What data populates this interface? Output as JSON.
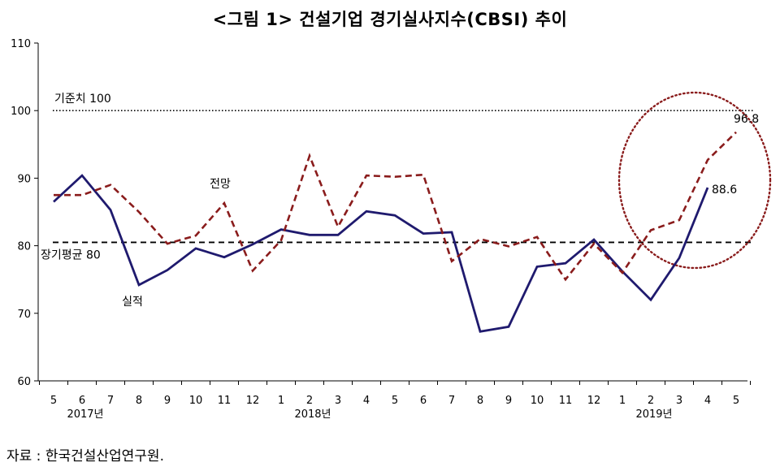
{
  "chart_data": {
    "type": "line",
    "title": "<그림 1> 건설기업 경기실사지수(CBSI) 추이",
    "x": [
      "5",
      "6",
      "7",
      "8",
      "9",
      "10",
      "11",
      "12",
      "1",
      "2",
      "3",
      "4",
      "5",
      "6",
      "7",
      "8",
      "9",
      "10",
      "11",
      "12",
      "1",
      "2",
      "3",
      "4",
      "5"
    ],
    "year_labels": [
      {
        "label": "2017년",
        "index": 1
      },
      {
        "label": "2018년",
        "index": 9
      },
      {
        "label": "2019년",
        "index": 21
      }
    ],
    "ylim": [
      60,
      110
    ],
    "yticks": [
      60,
      70,
      80,
      90,
      100,
      110
    ],
    "series": [
      {
        "name": "실적",
        "style": "solid",
        "color": "#1f1a6e",
        "values": [
          86.5,
          90.4,
          85.3,
          74.2,
          76.4,
          79.6,
          78.3,
          80.2,
          82.4,
          81.6,
          81.6,
          85.1,
          84.5,
          81.8,
          82.0,
          67.3,
          68.0,
          76.9,
          77.4,
          80.9,
          76.2,
          72.0,
          78.2,
          88.6,
          null
        ]
      },
      {
        "name": "전망",
        "style": "dashed",
        "color": "#8a1c1c",
        "values": [
          87.5,
          87.5,
          89.0,
          85.0,
          80.3,
          81.5,
          86.3,
          76.3,
          80.8,
          93.3,
          82.8,
          90.4,
          90.2,
          90.5,
          77.7,
          81.0,
          79.9,
          81.3,
          75.0,
          80.3,
          76.0,
          82.3,
          83.8,
          92.7,
          96.8
        ]
      }
    ],
    "reference_lines": [
      {
        "label": "기준치 100",
        "value": 100,
        "style": "dotted"
      },
      {
        "label": "장기평균 80",
        "value": 80.5,
        "style": "dashed"
      }
    ],
    "data_labels": [
      {
        "text": "88.6",
        "series": "실적",
        "index": 23
      },
      {
        "text": "96.8",
        "series": "전망",
        "index": 24
      }
    ],
    "series_labels": [
      {
        "text": "전망",
        "series": "전망",
        "index": 6
      },
      {
        "text": "실적",
        "series": "실적",
        "index": 3
      }
    ],
    "highlight_circle": {
      "color": "#8a1c1c",
      "style": "dotted"
    }
  },
  "source_note": "자료 : 한국건설산업연구원."
}
